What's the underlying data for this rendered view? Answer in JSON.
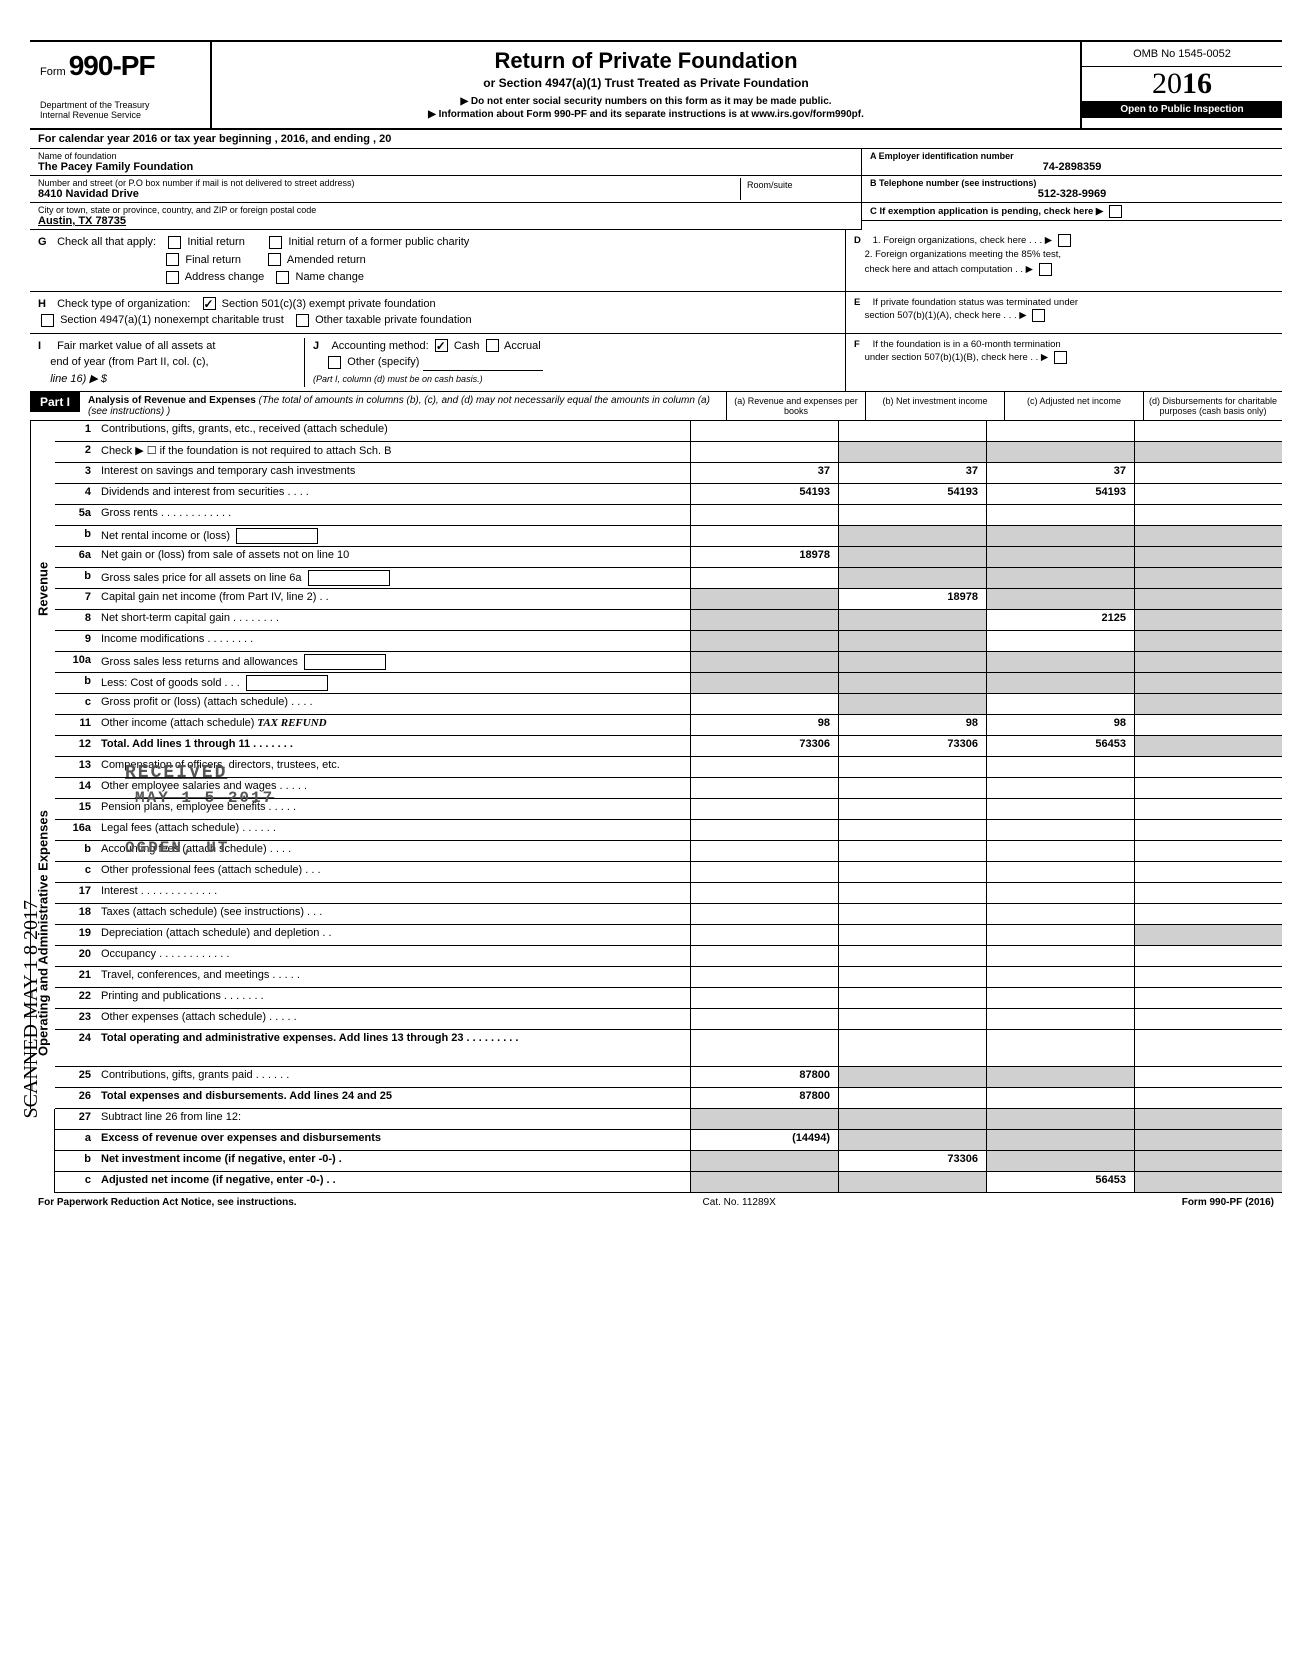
{
  "form": {
    "prefix": "Form",
    "number": "990-PF",
    "dept1": "Department of the Treasury",
    "dept2": "Internal Revenue Service",
    "title": "Return of Private Foundation",
    "subtitle": "or Section 4947(a)(1) Trust Treated as Private Foundation",
    "note1": "▶ Do not enter social security numbers on this form as it may be made public.",
    "note2": "▶ Information about Form 990-PF and its separate instructions is at www.irs.gov/form990pf.",
    "omb": "OMB No 1545-0052",
    "year_prefix": "20",
    "year_suffix": "16",
    "inspection": "Open to Public Inspection"
  },
  "cal": "For calendar year 2016 or tax year beginning                                                          , 2016, and ending                                              , 20",
  "name_label": "Name of foundation",
  "foundation_name": "The Pacey Family Foundation",
  "addr_label": "Number and street (or P.O  box number if mail is not delivered to street address)",
  "room_label": "Room/suite",
  "street": "8410 Navidad Drive",
  "city_label": "City or town, state or province, country, and ZIP or foreign postal code",
  "city": "Austin, TX  78735",
  "ein_label": "A  Employer identification number",
  "ein": "74-2898359",
  "tel_label": "B  Telephone number (see instructions)",
  "tel": "512-328-9969",
  "c_label": "C  If exemption application is pending, check here ▶",
  "g": {
    "label": "Check all that apply:",
    "opts": [
      "Initial return",
      "Initial return of a former public charity",
      "Final return",
      "Amended return",
      "Address change",
      "Name change"
    ]
  },
  "d": {
    "d1": "1. Foreign organizations, check here .   .   .  ▶",
    "d2a": "2. Foreign organizations meeting the 85% test,",
    "d2b": "check here and attach computation   .   .  ▶"
  },
  "h": {
    "label": "Check type of organization:",
    "opt1": "Section 501(c)(3) exempt private foundation",
    "opt2": "Section 4947(a)(1) nonexempt charitable trust",
    "opt3": "Other taxable private foundation"
  },
  "e": {
    "e1": "If private foundation status was terminated under",
    "e2": "section 507(b)(1)(A), check here     .    .    .   ▶"
  },
  "i": {
    "line1": "Fair market value of all assets at",
    "line2": "end of year  (from Part II, col. (c),",
    "line3": "line 16) ▶ $"
  },
  "j": {
    "label": "Accounting method:",
    "cash": "Cash",
    "accrual": "Accrual",
    "other": "Other (specify)",
    "note": "(Part I, column (d) must be on cash basis.)"
  },
  "f": {
    "f1": "If the foundation is in a 60-month termination",
    "f2": "under section 507(b)(1)(B), check here    .    .  ▶"
  },
  "part1": {
    "label": "Part I",
    "title": "Analysis of Revenue and Expenses",
    "desc": "(The total of amounts in columns (b), (c), and (d) may not necessarily equal the amounts in column (a) (see instructions) )",
    "col_a": "(a) Revenue and expenses per books",
    "col_b": "(b) Net investment income",
    "col_c": "(c) Adjusted net income",
    "col_d": "(d) Disbursements for charitable purposes (cash basis only)"
  },
  "side": {
    "revenue": "Revenue",
    "expenses": "Operating and Administrative Expenses"
  },
  "rows": [
    {
      "no": "1",
      "label": "Contributions, gifts, grants, etc., received (attach schedule)",
      "a": "",
      "b": "",
      "c": "",
      "d": "",
      "bg": "",
      "cg": "",
      "dg": ""
    },
    {
      "no": "2",
      "label": "Check ▶ ☐  if the foundation is not required to attach Sch. B",
      "a": "",
      "b": "",
      "c": "",
      "d": "",
      "bg": "g",
      "cg": "g",
      "dg": "g"
    },
    {
      "no": "3",
      "label": "Interest on savings and temporary cash investments",
      "a": "37",
      "b": "37",
      "c": "37",
      "d": ""
    },
    {
      "no": "4",
      "label": "Dividends and interest from securities   .    .    .    .",
      "a": "54193",
      "b": "54193",
      "c": "54193",
      "d": ""
    },
    {
      "no": "5a",
      "label": "Gross rents  .    .    .    .    .    .    .    .    .    .    .    .",
      "a": "",
      "b": "",
      "c": "",
      "d": ""
    },
    {
      "no": "b",
      "label": "Net rental income or (loss)",
      "a": "",
      "b": "",
      "c": "",
      "d": "",
      "inline": "1",
      "bg": "g",
      "cg": "g",
      "dg": "g"
    },
    {
      "no": "6a",
      "label": "Net gain or (loss) from sale of assets not on line 10",
      "a": "18978",
      "b": "",
      "c": "",
      "d": "",
      "bg": "g",
      "cg": "g",
      "dg": "g"
    },
    {
      "no": "b",
      "label": "Gross sales price for all assets on line 6a",
      "a": "",
      "b": "",
      "c": "",
      "d": "",
      "inline": "1",
      "bg": "g",
      "cg": "g",
      "dg": "g"
    },
    {
      "no": "7",
      "label": "Capital gain net income (from Part IV, line 2)   .    .",
      "a": "",
      "b": "18978",
      "c": "",
      "d": "",
      "ag": "g",
      "cg": "g",
      "dg": "g"
    },
    {
      "no": "8",
      "label": "Net short-term capital gain  .    .    .    .    .    .    .    .",
      "a": "",
      "b": "",
      "c": "2125",
      "d": "",
      "ag": "g",
      "bg": "g",
      "dg": "g"
    },
    {
      "no": "9",
      "label": "Income modifications       .    .    .    .    .    .    .    .",
      "a": "",
      "b": "",
      "c": "",
      "d": "",
      "ag": "g",
      "bg": "g",
      "dg": "g"
    },
    {
      "no": "10a",
      "label": "Gross sales less returns and allowances",
      "a": "",
      "b": "",
      "c": "",
      "d": "",
      "inline": "1",
      "bg": "g",
      "cg": "g",
      "dg": "g",
      "ag": "g"
    },
    {
      "no": "b",
      "label": "Less: Cost of goods sold    .    .    .",
      "a": "",
      "b": "",
      "c": "",
      "d": "",
      "inline": "1",
      "bg": "g",
      "cg": "g",
      "dg": "g",
      "ag": "g"
    },
    {
      "no": "c",
      "label": "Gross profit or (loss) (attach schedule)   .    .    .    .",
      "a": "",
      "b": "",
      "c": "",
      "d": "",
      "bg": "g",
      "dg": "g"
    },
    {
      "no": "11",
      "label": "Other income (attach schedule)",
      "a": "98",
      "b": "98",
      "c": "98",
      "d": "",
      "hand": "TAX REFUND"
    },
    {
      "no": "12",
      "label": "Total. Add lines 1 through 11   .    .    .    .    .    .    .",
      "a": "73306",
      "b": "73306",
      "c": "56453",
      "d": "",
      "bold": "1",
      "dg": "g"
    }
  ],
  "exp_rows": [
    {
      "no": "13",
      "label": "Compensation of officers, directors, trustees, etc.",
      "a": "",
      "b": "",
      "c": "",
      "d": ""
    },
    {
      "no": "14",
      "label": "Other employee salaries and wages  .    .    .    .    .",
      "a": "",
      "b": "",
      "c": "",
      "d": ""
    },
    {
      "no": "15",
      "label": "Pension plans, employee benefits    .    .    .    .    .",
      "a": "",
      "b": "",
      "c": "",
      "d": ""
    },
    {
      "no": "16a",
      "label": "Legal fees (attach schedule)    .    .    .    .    .    .",
      "a": "",
      "b": "",
      "c": "",
      "d": ""
    },
    {
      "no": "b",
      "label": "Accounting fees (attach schedule)    .    .    .    .",
      "a": "",
      "b": "",
      "c": "",
      "d": ""
    },
    {
      "no": "c",
      "label": "Other professional fees (attach schedule)  .    .    .",
      "a": "",
      "b": "",
      "c": "",
      "d": ""
    },
    {
      "no": "17",
      "label": "Interest    .    .    .    .    .    .    .    .    .    .    .    .    .",
      "a": "",
      "b": "",
      "c": "",
      "d": ""
    },
    {
      "no": "18",
      "label": "Taxes (attach schedule) (see instructions)    .    .    .",
      "a": "",
      "b": "",
      "c": "",
      "d": ""
    },
    {
      "no": "19",
      "label": "Depreciation (attach schedule) and depletion  .    .",
      "a": "",
      "b": "",
      "c": "",
      "d": "",
      "dg": "g"
    },
    {
      "no": "20",
      "label": "Occupancy .    .    .    .    .    .    .    .    .    .    .    .",
      "a": "",
      "b": "",
      "c": "",
      "d": ""
    },
    {
      "no": "21",
      "label": "Travel, conferences, and meetings    .    .    .    .    .",
      "a": "",
      "b": "",
      "c": "",
      "d": ""
    },
    {
      "no": "22",
      "label": "Printing and publications     .    .    .    .    .    .    .",
      "a": "",
      "b": "",
      "c": "",
      "d": ""
    },
    {
      "no": "23",
      "label": "Other expenses (attach schedule)     .    .    .    .    .",
      "a": "",
      "b": "",
      "c": "",
      "d": ""
    },
    {
      "no": "24",
      "label": "Total operating and administrative expenses. Add lines 13 through 23 .    .    .    .    .    .    .    .    .",
      "a": "",
      "b": "",
      "c": "",
      "d": "",
      "bold": "1",
      "tall": "1"
    },
    {
      "no": "25",
      "label": "Contributions, gifts, grants paid    .    .    .    .    .    .",
      "a": "87800",
      "b": "",
      "c": "",
      "d": "",
      "bg": "g",
      "cg": "g"
    },
    {
      "no": "26",
      "label": "Total expenses and disbursements. Add lines 24 and 25",
      "a": "87800",
      "b": "",
      "c": "",
      "d": "",
      "bold": "1"
    }
  ],
  "final_rows": [
    {
      "no": "27",
      "label": "Subtract line 26 from line 12:",
      "a": "",
      "b": "",
      "c": "",
      "d": "",
      "bg": "g",
      "cg": "g",
      "dg": "g",
      "ag": "g"
    },
    {
      "no": "a",
      "label": "Excess of revenue over expenses and disbursements",
      "a": "(14494)",
      "b": "",
      "c": "",
      "d": "",
      "bold": "1",
      "bg": "g",
      "cg": "g",
      "dg": "g"
    },
    {
      "no": "b",
      "label": "Net investment income (if negative, enter -0-)   .",
      "a": "",
      "b": "73306",
      "c": "",
      "d": "",
      "bold": "1",
      "ag": "g",
      "cg": "g",
      "dg": "g"
    },
    {
      "no": "c",
      "label": "Adjusted net income (if negative, enter -0-)   .    .",
      "a": "",
      "b": "",
      "c": "56453",
      "d": "",
      "bold": "1",
      "ag": "g",
      "bg": "g",
      "dg": "g"
    }
  ],
  "footer": {
    "left": "For Paperwork Reduction Act Notice, see instructions.",
    "mid": "Cat. No. 11289X",
    "right": "Form 990-PF (2016)"
  },
  "scanned": "SCANNED MAY 1 8 2017",
  "stamp": {
    "received": "RECEIVED",
    "date": "MAY 1 5 2017",
    "ogden": "OGDEN, UT"
  }
}
